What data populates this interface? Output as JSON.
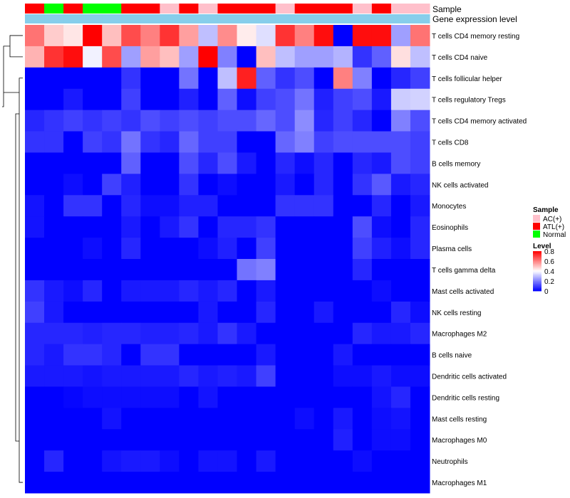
{
  "chart_data": {
    "type": "heatmap",
    "title": "",
    "annotation_labels": {
      "sample": "Sample",
      "level": "Gene expression level"
    },
    "legend": {
      "sample_title": "Sample",
      "level_title": "Level",
      "sample_entries": [
        {
          "label": "AC(+)",
          "color": "#FFC0CB"
        },
        {
          "label": "ATL(+)",
          "color": "#FF0000"
        },
        {
          "label": "Normal",
          "color": "#00FF00"
        }
      ],
      "level_ticks": [
        "0.8",
        "0.6",
        "0.4",
        "0.2",
        "0"
      ],
      "level_tick_values": [
        0.8,
        0.6,
        0.4,
        0.2,
        0
      ],
      "placement": "right"
    },
    "sample_groups": [
      "ATL(+)",
      "Normal",
      "ATL(+)",
      "Normal",
      "Normal",
      "ATL(+)",
      "ATL(+)",
      "AC(+)",
      "ATL(+)",
      "AC(+)",
      "ATL(+)",
      "ATL(+)",
      "ATL(+)",
      "AC(+)",
      "ATL(+)",
      "ATL(+)",
      "ATL(+)",
      "AC(+)",
      "ATL(+)",
      "AC(+)",
      "AC(+)"
    ],
    "sample_colors": {
      "AC(+)": "#FFC0CB",
      "ATL(+)": "#FF0000",
      "Normal": "#00FF00"
    },
    "level_strip_color": "#87CEEB",
    "color_scale": {
      "low": "#0000FF",
      "mid": "#FFFFFF",
      "high": "#FF0000",
      "min": 0,
      "mid_value": 0.4,
      "max": 0.8
    },
    "rows": [
      "T cells CD4 memory resting",
      "T cells CD4 naive",
      "T cells follicular helper",
      "T cells regulatory  Tregs",
      "T cells CD4 memory activated",
      "T cells CD8",
      "B cells memory",
      "NK cells activated",
      "Monocytes",
      "Eosinophils",
      "Plasma cells",
      "T cells gamma delta",
      "Mast cells activated",
      "NK cells resting",
      "Macrophages M2",
      "B cells naive",
      "Dendritic cells activated",
      "Dendritic cells resting",
      "Mast cells resting",
      "Macrophages M0",
      "Neutrophils",
      "Macrophages M1"
    ],
    "values": [
      [
        0.62,
        0.48,
        0.44,
        0.8,
        0.5,
        0.68,
        0.6,
        0.72,
        0.55,
        0.3,
        0.58,
        0.43,
        0.35,
        0.72,
        0.6,
        0.78,
        0.0,
        0.78,
        0.78,
        0.25,
        0.62
      ],
      [
        0.52,
        0.72,
        0.78,
        0.38,
        0.68,
        0.25,
        0.55,
        0.5,
        0.25,
        0.8,
        0.2,
        0.0,
        0.5,
        0.3,
        0.25,
        0.25,
        0.28,
        0.08,
        0.15,
        0.45,
        0.3
      ],
      [
        0.0,
        0.0,
        0.0,
        0.0,
        0.0,
        0.08,
        0.0,
        0.0,
        0.18,
        0.0,
        0.3,
        0.75,
        0.15,
        0.08,
        0.12,
        0.0,
        0.6,
        0.2,
        0.0,
        0.06,
        0.1
      ],
      [
        0.0,
        0.0,
        0.04,
        0.0,
        0.0,
        0.1,
        0.0,
        0.0,
        0.05,
        0.0,
        0.15,
        0.02,
        0.1,
        0.12,
        0.18,
        0.05,
        0.1,
        0.12,
        0.04,
        0.32,
        0.33
      ],
      [
        0.06,
        0.08,
        0.1,
        0.08,
        0.1,
        0.08,
        0.12,
        0.1,
        0.12,
        0.1,
        0.12,
        0.12,
        0.16,
        0.12,
        0.22,
        0.06,
        0.1,
        0.06,
        0.0,
        0.2,
        0.12
      ],
      [
        0.08,
        0.08,
        0.0,
        0.1,
        0.08,
        0.18,
        0.08,
        0.06,
        0.16,
        0.1,
        0.1,
        0.0,
        0.0,
        0.16,
        0.2,
        0.1,
        0.12,
        0.12,
        0.12,
        0.12,
        0.1
      ],
      [
        0.0,
        0.0,
        0.0,
        0.0,
        0.0,
        0.15,
        0.0,
        0.0,
        0.12,
        0.06,
        0.12,
        0.04,
        0.0,
        0.06,
        0.02,
        0.06,
        0.0,
        0.06,
        0.04,
        0.12,
        0.1
      ],
      [
        0.0,
        0.0,
        0.02,
        0.0,
        0.1,
        0.05,
        0.0,
        0.0,
        0.08,
        0.0,
        0.02,
        0.0,
        0.0,
        0.04,
        0.0,
        0.06,
        0.0,
        0.08,
        0.14,
        0.04,
        0.06
      ],
      [
        0.03,
        0.0,
        0.08,
        0.08,
        0.0,
        0.06,
        0.02,
        0.02,
        0.05,
        0.05,
        0.0,
        0.0,
        0.0,
        0.08,
        0.08,
        0.08,
        0.0,
        0.0,
        0.06,
        0.0,
        0.04
      ],
      [
        0.03,
        0.0,
        0.0,
        0.0,
        0.0,
        0.04,
        0.0,
        0.04,
        0.08,
        0.0,
        0.06,
        0.06,
        0.08,
        0.0,
        0.0,
        0.0,
        0.0,
        0.12,
        0.02,
        0.0,
        0.06
      ],
      [
        0.0,
        0.0,
        0.0,
        0.02,
        0.0,
        0.06,
        0.0,
        0.0,
        0.0,
        0.02,
        0.05,
        0.0,
        0.1,
        0.0,
        0.0,
        0.0,
        0.0,
        0.1,
        0.05,
        0.02,
        0.06
      ],
      [
        0.0,
        0.0,
        0.0,
        0.0,
        0.0,
        0.0,
        0.0,
        0.0,
        0.0,
        0.0,
        0.0,
        0.18,
        0.2,
        0.0,
        0.0,
        0.0,
        0.0,
        0.06,
        0.0,
        0.0,
        0.0
      ],
      [
        0.08,
        0.04,
        0.02,
        0.06,
        0.0,
        0.04,
        0.04,
        0.04,
        0.06,
        0.04,
        0.06,
        0.0,
        0.04,
        0.0,
        0.0,
        0.0,
        0.0,
        0.0,
        0.02,
        0.0,
        0.0
      ],
      [
        0.1,
        0.04,
        0.0,
        0.0,
        0.0,
        0.0,
        0.0,
        0.0,
        0.0,
        0.04,
        0.0,
        0.0,
        0.06,
        0.0,
        0.0,
        0.04,
        0.0,
        0.0,
        0.0,
        0.06,
        0.02
      ],
      [
        0.06,
        0.06,
        0.06,
        0.05,
        0.06,
        0.06,
        0.05,
        0.05,
        0.06,
        0.04,
        0.08,
        0.04,
        0.0,
        0.0,
        0.0,
        0.0,
        0.0,
        0.06,
        0.04,
        0.04,
        0.06
      ],
      [
        0.06,
        0.04,
        0.08,
        0.08,
        0.06,
        0.0,
        0.08,
        0.08,
        0.0,
        0.0,
        0.0,
        0.0,
        0.04,
        0.0,
        0.0,
        0.0,
        0.04,
        0.0,
        0.0,
        0.0,
        0.0
      ],
      [
        0.04,
        0.04,
        0.04,
        0.03,
        0.04,
        0.04,
        0.04,
        0.04,
        0.06,
        0.04,
        0.05,
        0.04,
        0.1,
        0.0,
        0.0,
        0.0,
        0.02,
        0.02,
        0.04,
        0.02,
        0.02
      ],
      [
        0.0,
        0.0,
        0.01,
        0.02,
        0.02,
        0.02,
        0.02,
        0.02,
        0.0,
        0.03,
        0.0,
        0.0,
        0.0,
        0.0,
        0.0,
        0.0,
        0.0,
        0.0,
        0.03,
        0.06,
        0.0
      ],
      [
        0.0,
        0.0,
        0.0,
        0.0,
        0.03,
        0.0,
        0.0,
        0.0,
        0.0,
        0.0,
        0.0,
        0.0,
        0.0,
        0.0,
        0.02,
        0.0,
        0.04,
        0.0,
        0.02,
        0.03,
        0.0
      ],
      [
        0.0,
        0.0,
        0.0,
        0.0,
        0.0,
        0.0,
        0.0,
        0.0,
        0.0,
        0.0,
        0.0,
        0.0,
        0.0,
        0.0,
        0.0,
        0.0,
        0.05,
        0.0,
        0.02,
        0.02,
        0.0
      ],
      [
        0.0,
        0.06,
        0.0,
        0.0,
        0.03,
        0.04,
        0.04,
        0.02,
        0.0,
        0.03,
        0.03,
        0.0,
        0.04,
        0.0,
        0.0,
        0.0,
        0.0,
        0.02,
        0.0,
        0.0,
        0.0
      ],
      [
        0.0,
        0.0,
        0.0,
        0.0,
        0.0,
        0.0,
        0.0,
        0.0,
        0.0,
        0.0,
        0.0,
        0.0,
        0.0,
        0.0,
        0.0,
        0.0,
        0.0,
        0.0,
        0.0,
        0.0,
        0.0
      ]
    ],
    "dendrogram": "hierarchical clustering of rows; first two rows form one cluster, remaining 20 form another"
  }
}
